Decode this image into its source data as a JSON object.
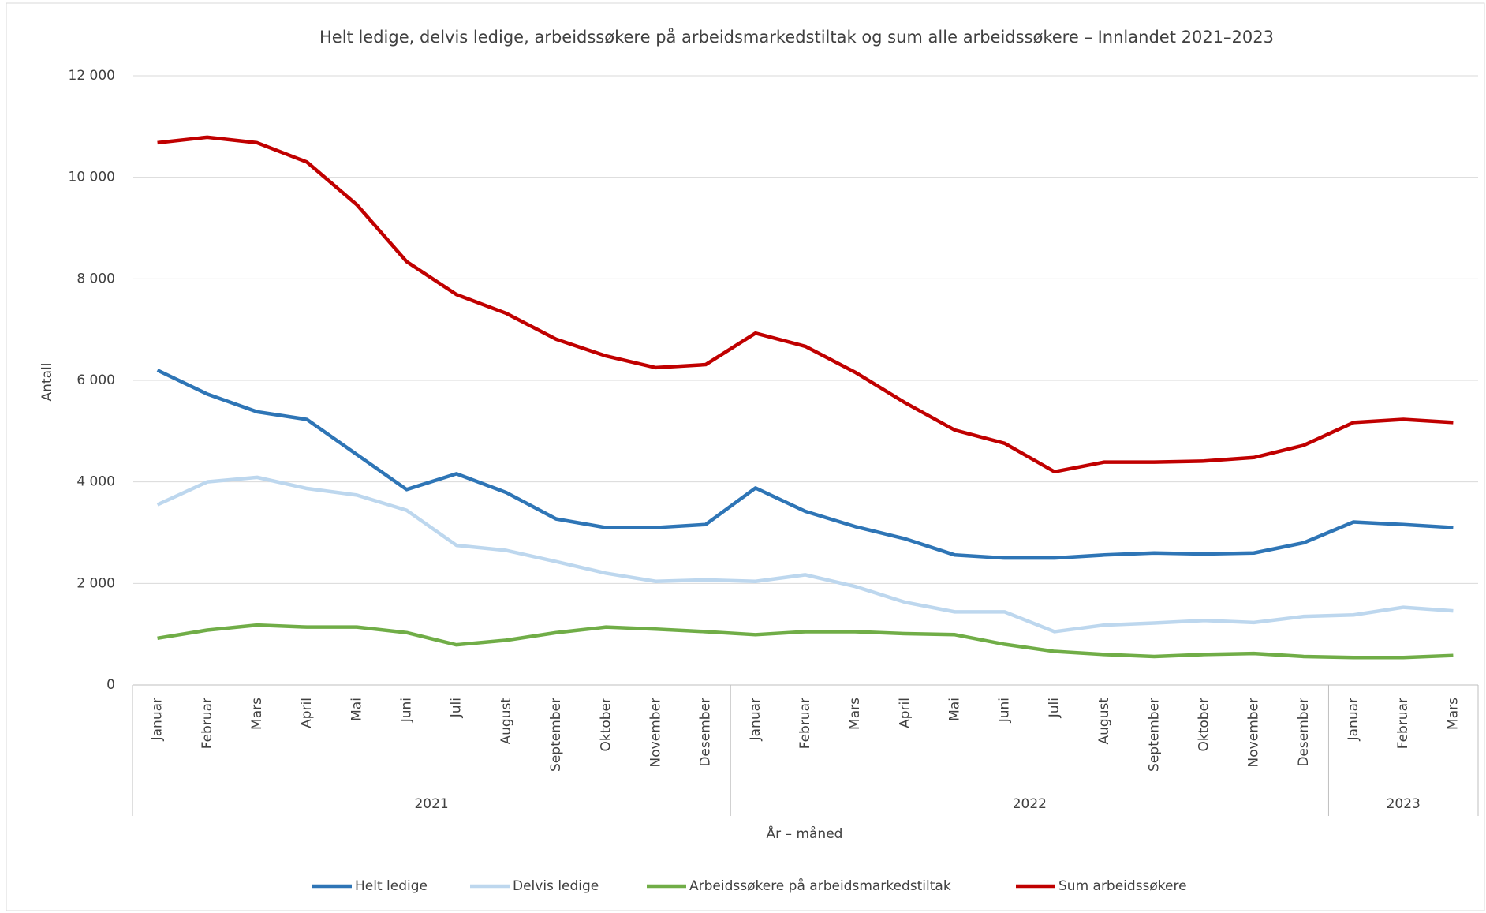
{
  "chart_data": {
    "type": "line",
    "title": "Helt ledige, delvis ledige, arbeidssøkere på arbeidsmarkedstiltak og sum alle arbeidssøkere – Innlandet 2021–2023",
    "x_label": "År – måned",
    "y_label": "Antall",
    "category_groups": [
      {
        "label": "2021",
        "categories": [
          "Januar",
          "Februar",
          "Mars",
          "April",
          "Mai",
          "Juni",
          "Juli",
          "August",
          "September",
          "Oktober",
          "November",
          "Desember"
        ]
      },
      {
        "label": "2022",
        "categories": [
          "Januar",
          "Februar",
          "Mars",
          "April",
          "Mai",
          "Juni",
          "Juli",
          "August",
          "September",
          "Oktober",
          "November",
          "Desember"
        ]
      },
      {
        "label": "2023",
        "categories": [
          "Januar",
          "Februar",
          "Mars"
        ]
      }
    ],
    "ylim": [
      0,
      12000
    ],
    "yticks": [
      0,
      {
        "value": 2000,
        "label": "2 000"
      },
      {
        "value": 4000,
        "label": "4 000"
      },
      {
        "value": 6000,
        "label": "6 000"
      },
      {
        "value": 8000,
        "label": "8 000"
      },
      {
        "value": 10000,
        "label": "10 000"
      },
      {
        "value": 12000,
        "label": "12 000"
      }
    ],
    "grid": true,
    "legend": "bottom",
    "series": [
      {
        "name": "Helt ledige",
        "color": "#2e75b6",
        "values": [
          6200,
          5730,
          5380,
          5230,
          4540,
          3850,
          4160,
          3790,
          3270,
          3100,
          3100,
          3160,
          3880,
          3420,
          3120,
          2880,
          2560,
          2500,
          2500,
          2560,
          2600,
          2580,
          2600,
          2800,
          3210,
          3160,
          3100
        ]
      },
      {
        "name": "Delvis ledige",
        "color": "#bdd7ee",
        "values": [
          3550,
          4000,
          4090,
          3870,
          3740,
          3440,
          2750,
          2650,
          2430,
          2200,
          2040,
          2070,
          2040,
          2170,
          1940,
          1630,
          1440,
          1440,
          1050,
          1180,
          1220,
          1270,
          1230,
          1350,
          1380,
          1530,
          1460
        ]
      },
      {
        "name": "Arbeidssøkere på arbeidsmarkedstiltak",
        "color": "#70ad47",
        "values": [
          920,
          1080,
          1180,
          1140,
          1140,
          1030,
          790,
          880,
          1030,
          1140,
          1100,
          1050,
          990,
          1050,
          1050,
          1010,
          990,
          800,
          660,
          600,
          560,
          600,
          620,
          560,
          540,
          540,
          580
        ]
      },
      {
        "name": "Sum arbeidssøkere",
        "color": "#c00000",
        "values": [
          10680,
          10790,
          10680,
          10300,
          9460,
          8340,
          7690,
          7320,
          6810,
          6480,
          6250,
          6310,
          6930,
          6670,
          6160,
          5560,
          5020,
          4760,
          4200,
          4390,
          4390,
          4410,
          4480,
          4720,
          5170,
          5230,
          5170
        ]
      }
    ]
  }
}
